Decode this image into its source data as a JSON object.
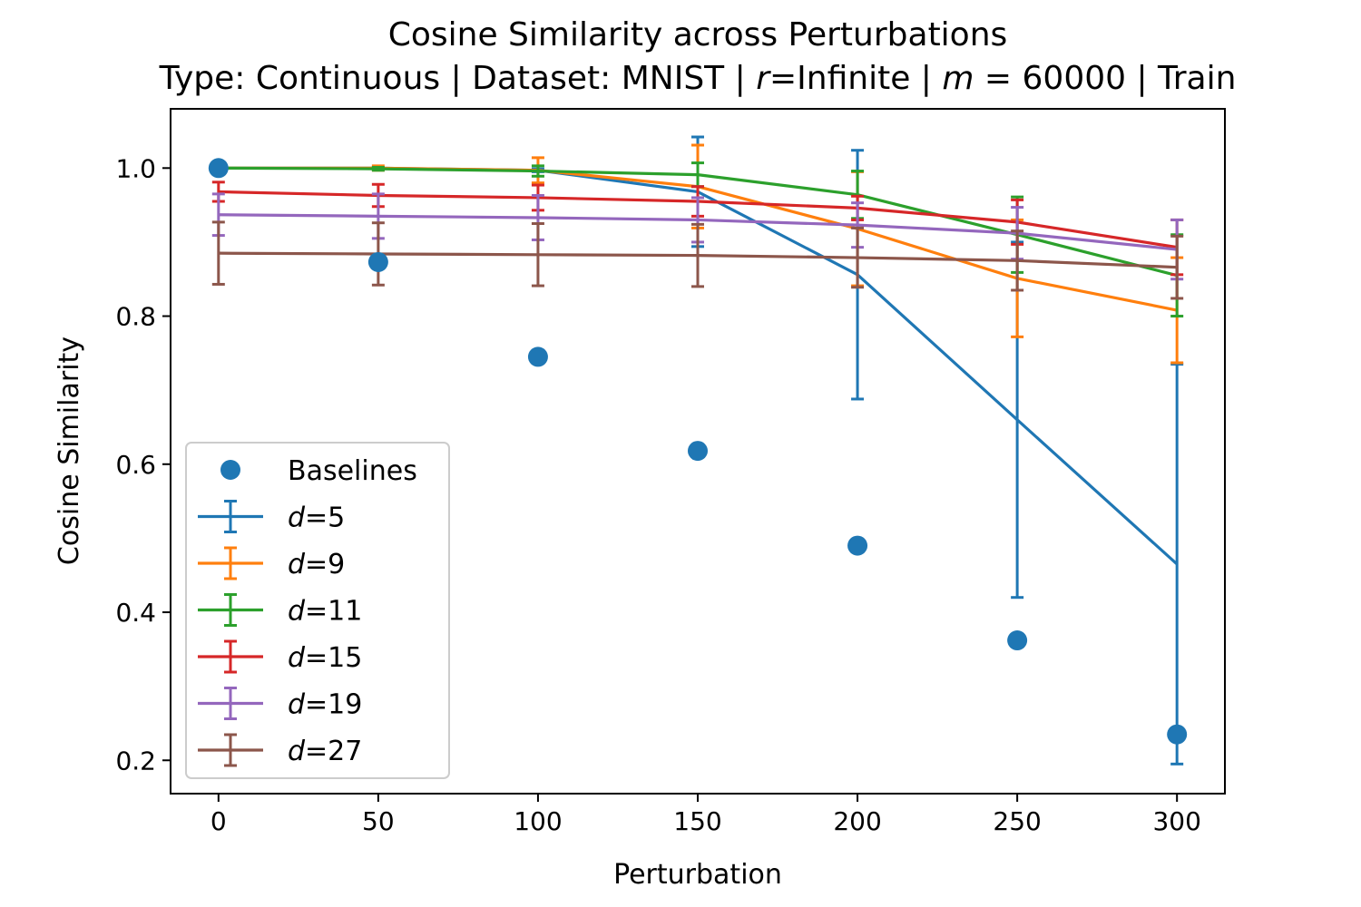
{
  "chart_data": {
    "type": "line",
    "title": "Cosine Similarity across Perturbations",
    "subtitle_parts": {
      "prefix": "Type: Continuous | Dataset: MNIST | ",
      "r_var": "r",
      "r_value": "=Infinite | ",
      "m_var": "m",
      "m_value": " = 60000 | Train"
    },
    "xlabel": "Perturbation",
    "ylabel": "Cosine Similarity",
    "x": [
      0,
      50,
      100,
      150,
      200,
      250,
      300
    ],
    "xticks": [
      0,
      50,
      100,
      150,
      200,
      250,
      300
    ],
    "yticks": [
      0.2,
      0.4,
      0.6,
      0.8,
      1.0
    ],
    "ytick_labels": [
      "0.2",
      "0.4",
      "0.6",
      "0.8",
      "1.0"
    ],
    "xlim": [
      -15,
      315
    ],
    "ylim": [
      0.155,
      1.08
    ],
    "legend_position": "lower-left",
    "baselines": {
      "name": "Baselines",
      "color": "#1f77b4",
      "values": [
        1.0,
        0.873,
        0.745,
        0.618,
        0.49,
        0.362,
        0.235
      ]
    },
    "series": [
      {
        "var": "d",
        "suffix": "=5",
        "color": "#1f77b4",
        "values": [
          1.0,
          1.0,
          0.997,
          0.968,
          0.856,
          0.66,
          0.465
        ],
        "errors": [
          0.0,
          0.0,
          0.002,
          0.074,
          0.168,
          0.24,
          0.27
        ]
      },
      {
        "var": "d",
        "suffix": "=9",
        "color": "#ff7f0e",
        "values": [
          1.0,
          1.0,
          0.997,
          0.975,
          0.918,
          0.851,
          0.808
        ],
        "errors": [
          0.0,
          0.003,
          0.017,
          0.056,
          0.077,
          0.079,
          0.071
        ]
      },
      {
        "var": "d",
        "suffix": "=11",
        "color": "#2ca02c",
        "values": [
          1.0,
          0.999,
          0.996,
          0.991,
          0.964,
          0.91,
          0.855
        ],
        "errors": [
          0.0,
          0.002,
          0.007,
          0.016,
          0.032,
          0.051,
          0.055
        ]
      },
      {
        "var": "d",
        "suffix": "=15",
        "color": "#d62728",
        "values": [
          0.968,
          0.963,
          0.96,
          0.955,
          0.946,
          0.927,
          0.893
        ],
        "errors": [
          0.013,
          0.015,
          0.017,
          0.02,
          0.016,
          0.03,
          0.037
        ]
      },
      {
        "var": "d",
        "suffix": "=19",
        "color": "#9467bd",
        "values": [
          0.937,
          0.935,
          0.933,
          0.93,
          0.923,
          0.912,
          0.89
        ],
        "errors": [
          0.028,
          0.03,
          0.03,
          0.03,
          0.03,
          0.035,
          0.04
        ]
      },
      {
        "var": "d",
        "suffix": "=27",
        "color": "#8c564b",
        "values": [
          0.885,
          0.884,
          0.883,
          0.882,
          0.879,
          0.875,
          0.866
        ],
        "errors": [
          0.042,
          0.042,
          0.042,
          0.042,
          0.04,
          0.04,
          0.042
        ]
      }
    ]
  }
}
